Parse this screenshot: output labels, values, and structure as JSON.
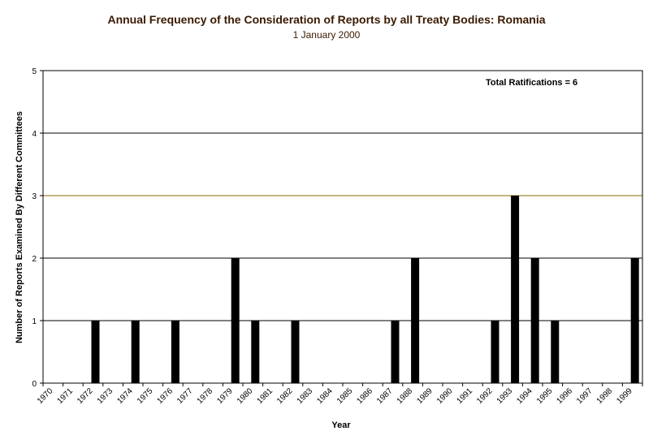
{
  "chart_data": {
    "type": "bar",
    "title": "Annual Frequency of the Consideration of Reports by all Treaty Bodies: Romania",
    "subtitle": "1 January 2000",
    "xlabel": "Year",
    "ylabel": "Number of Reports Examined By Different Committees",
    "annotation": "Total Ratifications = 6",
    "ylim": [
      0,
      5
    ],
    "yticks": [
      0,
      1,
      2,
      3,
      4,
      5
    ],
    "grid": true,
    "categories": [
      "1970",
      "1971",
      "1972",
      "1973",
      "1974",
      "1975",
      "1976",
      "1977",
      "1978",
      "1979",
      "1980",
      "1981",
      "1982",
      "1983",
      "1984",
      "1985",
      "1986",
      "1987",
      "1988",
      "1989",
      "1990",
      "1991",
      "1992",
      "1993",
      "1994",
      "1995",
      "1996",
      "1997",
      "1998",
      "1999"
    ],
    "values": [
      0,
      0,
      1,
      0,
      1,
      0,
      1,
      0,
      0,
      2,
      1,
      0,
      1,
      0,
      0,
      0,
      0,
      1,
      2,
      0,
      0,
      0,
      1,
      3,
      2,
      1,
      0,
      0,
      0,
      2
    ],
    "colors": {
      "bar": "#000000",
      "grid_major": "#000000",
      "grid_minor": "#8a6a00",
      "text": "#3a1a00"
    }
  }
}
